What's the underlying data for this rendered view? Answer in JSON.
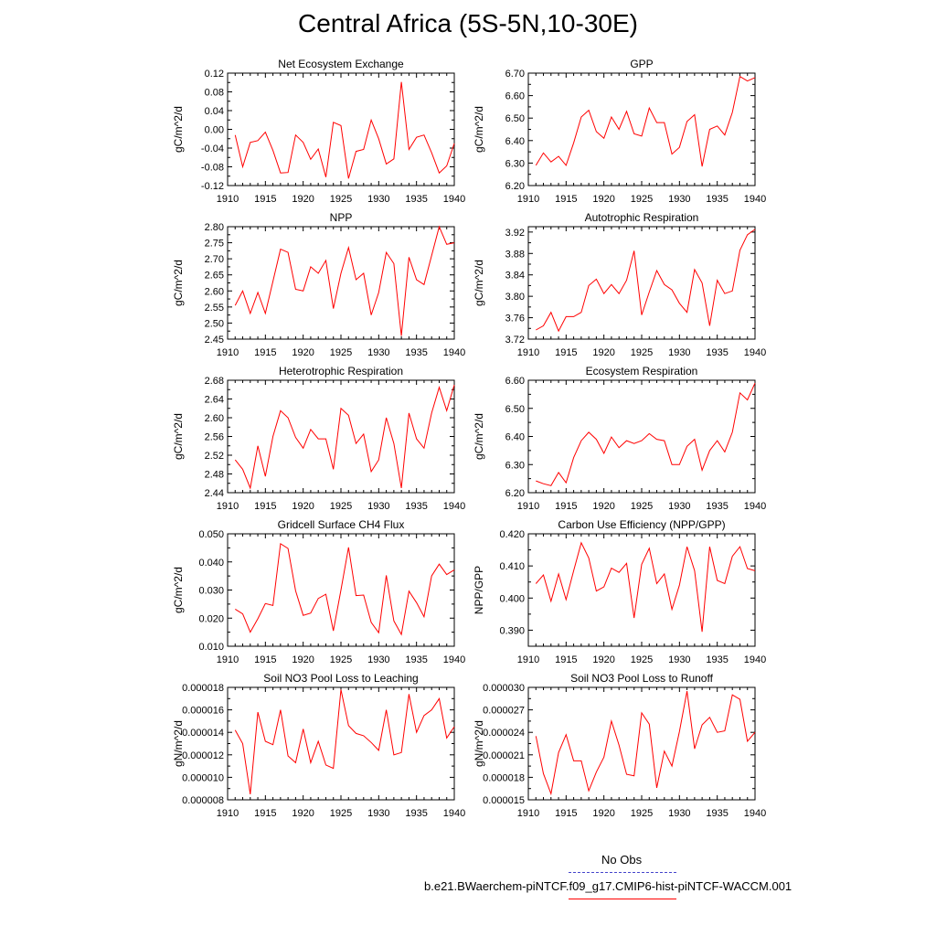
{
  "title": "Central Africa (5S-5N,10-30E)",
  "colors": {
    "series": "#ff0000",
    "obs": "#4444cc",
    "axis": "#000000"
  },
  "legend": {
    "obs_label": "No Obs",
    "model_label": "b.e21.BWaerchem-piNTCF.f09_g17.CMIP6-hist-piNTCF-WACCM.001"
  },
  "chart_data": [
    {
      "type": "line",
      "title": "Net Ecosystem Exchange",
      "ylabel": "gC/m^2/d",
      "xlim": [
        1910,
        1940
      ],
      "ylim": [
        -0.12,
        0.12
      ],
      "xticks": [
        "1910",
        "1915",
        "1920",
        "1925",
        "1930",
        "1935",
        "1940"
      ],
      "yticks": [
        "-0.12",
        "-0.08",
        "-0.04",
        "0.00",
        "0.04",
        "0.08",
        "0.12"
      ],
      "x": [
        1911,
        1912,
        1913,
        1914,
        1915,
        1916,
        1917,
        1918,
        1919,
        1920,
        1921,
        1922,
        1923,
        1924,
        1925,
        1926,
        1927,
        1928,
        1929,
        1930,
        1931,
        1932,
        1933,
        1934,
        1935,
        1936,
        1937,
        1938,
        1939,
        1940
      ],
      "values": [
        -0.012,
        -0.08,
        -0.028,
        -0.024,
        -0.006,
        -0.045,
        -0.093,
        -0.092,
        -0.012,
        -0.028,
        -0.064,
        -0.042,
        -0.102,
        0.015,
        0.008,
        -0.105,
        -0.047,
        -0.043,
        0.02,
        -0.02,
        -0.074,
        -0.063,
        0.101,
        -0.043,
        -0.017,
        -0.012,
        -0.05,
        -0.093,
        -0.078,
        -0.03
      ]
    },
    {
      "type": "line",
      "title": "GPP",
      "ylabel": "gC/m^2/d",
      "xlim": [
        1910,
        1940
      ],
      "ylim": [
        6.2,
        6.7
      ],
      "xticks": [
        "1910",
        "1915",
        "1920",
        "1925",
        "1930",
        "1935",
        "1940"
      ],
      "yticks": [
        "6.20",
        "6.30",
        "6.40",
        "6.50",
        "6.60",
        "6.70"
      ],
      "x": [
        1911,
        1912,
        1913,
        1914,
        1915,
        1916,
        1917,
        1918,
        1919,
        1920,
        1921,
        1922,
        1923,
        1924,
        1925,
        1926,
        1927,
        1928,
        1929,
        1930,
        1931,
        1932,
        1933,
        1934,
        1935,
        1936,
        1937,
        1938,
        1939,
        1940
      ],
      "values": [
        6.29,
        6.345,
        6.305,
        6.33,
        6.29,
        6.39,
        6.505,
        6.535,
        6.44,
        6.41,
        6.505,
        6.45,
        6.53,
        6.43,
        6.42,
        6.545,
        6.48,
        6.48,
        6.34,
        6.37,
        6.485,
        6.515,
        6.285,
        6.45,
        6.465,
        6.425,
        6.525,
        6.685,
        6.665,
        6.68
      ]
    },
    {
      "type": "line",
      "title": "NPP",
      "ylabel": "gC/m^2/d",
      "xlim": [
        1910,
        1940
      ],
      "ylim": [
        2.45,
        2.8
      ],
      "xticks": [
        "1910",
        "1915",
        "1920",
        "1925",
        "1930",
        "1935",
        "1940"
      ],
      "yticks": [
        "2.45",
        "2.50",
        "2.55",
        "2.60",
        "2.65",
        "2.70",
        "2.75",
        "2.80"
      ],
      "x": [
        1911,
        1912,
        1913,
        1914,
        1915,
        1916,
        1917,
        1918,
        1919,
        1920,
        1921,
        1922,
        1923,
        1924,
        1925,
        1926,
        1927,
        1928,
        1929,
        1930,
        1931,
        1932,
        1933,
        1934,
        1935,
        1936,
        1937,
        1938,
        1939,
        1940
      ],
      "values": [
        2.555,
        2.6,
        2.53,
        2.595,
        2.53,
        2.63,
        2.73,
        2.72,
        2.605,
        2.6,
        2.675,
        2.655,
        2.695,
        2.545,
        2.655,
        2.735,
        2.635,
        2.655,
        2.525,
        2.595,
        2.72,
        2.685,
        2.46,
        2.705,
        2.635,
        2.62,
        2.71,
        2.8,
        2.745,
        2.75
      ]
    },
    {
      "type": "line",
      "title": "Autotrophic Respiration",
      "ylabel": "gC/m^2/d",
      "xlim": [
        1910,
        1940
      ],
      "ylim": [
        3.72,
        3.93
      ],
      "xticks": [
        "1910",
        "1915",
        "1920",
        "1925",
        "1930",
        "1935",
        "1940"
      ],
      "yticks": [
        "3.72",
        "3.76",
        "3.80",
        "3.84",
        "3.88",
        "3.92"
      ],
      "x": [
        1911,
        1912,
        1913,
        1914,
        1915,
        1916,
        1917,
        1918,
        1919,
        1920,
        1921,
        1922,
        1923,
        1924,
        1925,
        1926,
        1927,
        1928,
        1929,
        1930,
        1931,
        1932,
        1933,
        1934,
        1935,
        1936,
        1937,
        1938,
        1939,
        1940
      ],
      "values": [
        3.737,
        3.745,
        3.77,
        3.735,
        3.762,
        3.762,
        3.77,
        3.82,
        3.832,
        3.805,
        3.822,
        3.805,
        3.83,
        3.885,
        3.765,
        3.808,
        3.848,
        3.822,
        3.812,
        3.787,
        3.77,
        3.85,
        3.825,
        3.745,
        3.83,
        3.805,
        3.81,
        3.886,
        3.915,
        3.925
      ]
    },
    {
      "type": "line",
      "title": "Heterotrophic Respiration",
      "ylabel": "gC/m^2/d",
      "xlim": [
        1910,
        1940
      ],
      "ylim": [
        2.44,
        2.68
      ],
      "xticks": [
        "1910",
        "1915",
        "1920",
        "1925",
        "1930",
        "1935",
        "1940"
      ],
      "yticks": [
        "2.44",
        "2.48",
        "2.52",
        "2.56",
        "2.60",
        "2.64",
        "2.68"
      ],
      "x": [
        1911,
        1912,
        1913,
        1914,
        1915,
        1916,
        1917,
        1918,
        1919,
        1920,
        1921,
        1922,
        1923,
        1924,
        1925,
        1926,
        1927,
        1928,
        1929,
        1930,
        1931,
        1932,
        1933,
        1934,
        1935,
        1936,
        1937,
        1938,
        1939,
        1940
      ],
      "values": [
        2.51,
        2.49,
        2.45,
        2.54,
        2.475,
        2.56,
        2.615,
        2.6,
        2.558,
        2.535,
        2.575,
        2.555,
        2.555,
        2.49,
        2.62,
        2.605,
        2.545,
        2.565,
        2.485,
        2.51,
        2.6,
        2.545,
        2.45,
        2.61,
        2.555,
        2.535,
        2.61,
        2.665,
        2.615,
        2.67
      ]
    },
    {
      "type": "line",
      "title": "Ecosystem Respiration",
      "ylabel": "gC/m^2/d",
      "xlim": [
        1910,
        1940
      ],
      "ylim": [
        6.2,
        6.6
      ],
      "xticks": [
        "1910",
        "1915",
        "1920",
        "1925",
        "1930",
        "1935",
        "1940"
      ],
      "yticks": [
        "6.20",
        "6.30",
        "6.40",
        "6.50",
        "6.60"
      ],
      "x": [
        1911,
        1912,
        1913,
        1914,
        1915,
        1916,
        1917,
        1918,
        1919,
        1920,
        1921,
        1922,
        1923,
        1924,
        1925,
        1926,
        1927,
        1928,
        1929,
        1930,
        1931,
        1932,
        1933,
        1934,
        1935,
        1936,
        1937,
        1938,
        1939,
        1940
      ],
      "values": [
        6.242,
        6.232,
        6.225,
        6.272,
        6.235,
        6.325,
        6.385,
        6.415,
        6.39,
        6.34,
        6.398,
        6.36,
        6.385,
        6.375,
        6.385,
        6.41,
        6.39,
        6.385,
        6.3,
        6.3,
        6.365,
        6.39,
        6.28,
        6.35,
        6.385,
        6.345,
        6.415,
        6.555,
        6.53,
        6.59
      ]
    },
    {
      "type": "line",
      "title": "Gridcell Surface CH4 Flux",
      "ylabel": "gC/m^2/d",
      "xlim": [
        1910,
        1940
      ],
      "ylim": [
        0.01,
        0.05
      ],
      "xticks": [
        "1910",
        "1915",
        "1920",
        "1925",
        "1930",
        "1935",
        "1940"
      ],
      "yticks": [
        "0.010",
        "0.020",
        "0.030",
        "0.040",
        "0.050"
      ],
      "x": [
        1911,
        1912,
        1913,
        1914,
        1915,
        1916,
        1917,
        1918,
        1919,
        1920,
        1921,
        1922,
        1923,
        1924,
        1925,
        1926,
        1927,
        1928,
        1929,
        1930,
        1931,
        1932,
        1933,
        1934,
        1935,
        1936,
        1937,
        1938,
        1939,
        1940
      ],
      "values": [
        0.0232,
        0.0215,
        0.015,
        0.0198,
        0.0252,
        0.0245,
        0.0465,
        0.0448,
        0.0297,
        0.021,
        0.0218,
        0.027,
        0.0285,
        0.0155,
        0.03,
        0.0452,
        0.028,
        0.0282,
        0.0185,
        0.0148,
        0.0352,
        0.019,
        0.0142,
        0.0296,
        0.0255,
        0.0205,
        0.035,
        0.0392,
        0.0355,
        0.0372
      ]
    },
    {
      "type": "line",
      "title": "Carbon Use Efficiency (NPP/GPP)",
      "ylabel": "NPP/GPP",
      "xlim": [
        1910,
        1940
      ],
      "ylim": [
        0.385,
        0.42
      ],
      "xticks": [
        "1910",
        "1915",
        "1920",
        "1925",
        "1930",
        "1935",
        "1940"
      ],
      "yticks": [
        "0.390",
        "0.400",
        "0.410",
        "0.420"
      ],
      "x": [
        1911,
        1912,
        1913,
        1914,
        1915,
        1916,
        1917,
        1918,
        1919,
        1920,
        1921,
        1922,
        1923,
        1924,
        1925,
        1926,
        1927,
        1928,
        1929,
        1930,
        1931,
        1932,
        1933,
        1934,
        1935,
        1936,
        1937,
        1938,
        1939,
        1940
      ],
      "values": [
        0.4045,
        0.4072,
        0.399,
        0.4075,
        0.3995,
        0.4085,
        0.4172,
        0.4125,
        0.4022,
        0.4035,
        0.4093,
        0.408,
        0.4108,
        0.3938,
        0.4105,
        0.4155,
        0.4045,
        0.4075,
        0.3965,
        0.404,
        0.416,
        0.4085,
        0.3895,
        0.416,
        0.4055,
        0.4045,
        0.413,
        0.416,
        0.4092,
        0.4085
      ]
    },
    {
      "type": "line",
      "title": "Soil NO3 Pool Loss to Leaching",
      "ylabel": "gN/m^2/d",
      "xlim": [
        1910,
        1940
      ],
      "ylim": [
        8e-06,
        1.8e-05
      ],
      "xticks": [
        "1910",
        "1915",
        "1920",
        "1925",
        "1930",
        "1935",
        "1940"
      ],
      "yticks": [
        "0.000008",
        "0.000010",
        "0.000012",
        "0.000014",
        "0.000016",
        "0.000018"
      ],
      "x": [
        1911,
        1912,
        1913,
        1914,
        1915,
        1916,
        1917,
        1918,
        1919,
        1920,
        1921,
        1922,
        1923,
        1924,
        1925,
        1926,
        1927,
        1928,
        1929,
        1930,
        1931,
        1932,
        1933,
        1934,
        1935,
        1936,
        1937,
        1938,
        1939,
        1940
      ],
      "values": [
        1.42e-05,
        1.3e-05,
        8.5e-06,
        1.58e-05,
        1.32e-05,
        1.29e-05,
        1.6e-05,
        1.19e-05,
        1.13e-05,
        1.43e-05,
        1.13e-05,
        1.32e-05,
        1.11e-05,
        1.08e-05,
        1.78e-05,
        1.46e-05,
        1.39e-05,
        1.37e-05,
        1.31e-05,
        1.24e-05,
        1.6e-05,
        1.2e-05,
        1.22e-05,
        1.74e-05,
        1.4e-05,
        1.55e-05,
        1.6e-05,
        1.7e-05,
        1.35e-05,
        1.45e-05
      ]
    },
    {
      "type": "line",
      "title": "Soil NO3 Pool Loss to Runoff",
      "ylabel": "gN/m^2/d",
      "xlim": [
        1910,
        1940
      ],
      "ylim": [
        1.5e-05,
        3e-05
      ],
      "xticks": [
        "1910",
        "1915",
        "1920",
        "1925",
        "1930",
        "1935",
        "1940"
      ],
      "yticks": [
        "0.000015",
        "0.000018",
        "0.000021",
        "0.000024",
        "0.000027",
        "0.000030"
      ],
      "x": [
        1911,
        1912,
        1913,
        1914,
        1915,
        1916,
        1917,
        1918,
        1919,
        1920,
        1921,
        1922,
        1923,
        1924,
        1925,
        1926,
        1927,
        1928,
        1929,
        1930,
        1931,
        1932,
        1933,
        1934,
        1935,
        1936,
        1937,
        1938,
        1939,
        1940
      ],
      "values": [
        2.35e-05,
        1.85e-05,
        1.58e-05,
        2.13e-05,
        2.37e-05,
        2.02e-05,
        2.02e-05,
        1.62e-05,
        1.87e-05,
        2.07e-05,
        2.55e-05,
        2.23e-05,
        1.84e-05,
        1.82e-05,
        2.66e-05,
        2.51e-05,
        1.66e-05,
        2.15e-05,
        1.95e-05,
        2.41e-05,
        2.95e-05,
        2.18e-05,
        2.5e-05,
        2.6e-05,
        2.4e-05,
        2.42e-05,
        2.9e-05,
        2.84e-05,
        2.28e-05,
        2.4e-05
      ]
    }
  ]
}
